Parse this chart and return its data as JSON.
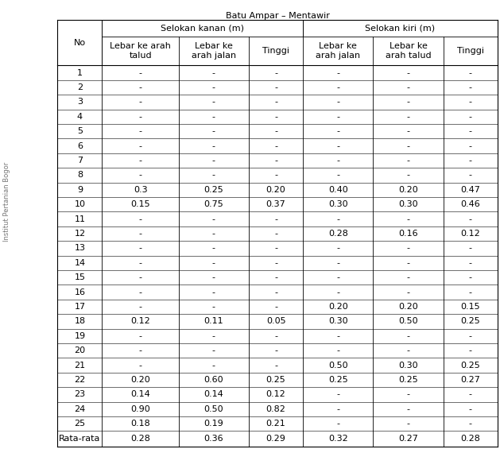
{
  "title": "Batu Ampar – Mentawir",
  "header_row1_left": "Selokan kanan (m)",
  "header_row1_right": "Selokan kiri (m)",
  "col_labels": [
    "No",
    "Lebar ke arah\ntalud",
    "Lebar ke\narah jalan",
    "Tinggi",
    "Lebar ke\narah jalan",
    "Lebar ke\narah talud",
    "Tinggi"
  ],
  "rows": [
    [
      "1",
      "-",
      "-",
      "-",
      "-",
      "-",
      "-"
    ],
    [
      "2",
      "-",
      "-",
      "-",
      "-",
      "-",
      "-"
    ],
    [
      "3",
      "-",
      "-",
      "-",
      "-",
      "-",
      "-"
    ],
    [
      "4",
      "-",
      "-",
      "-",
      "-",
      "-",
      "-"
    ],
    [
      "5",
      "-",
      "-",
      "-",
      "-",
      "-",
      "-"
    ],
    [
      "6",
      "-",
      "-",
      "-",
      "-",
      "-",
      "-"
    ],
    [
      "7",
      "-",
      "-",
      "-",
      "-",
      "-",
      "-"
    ],
    [
      "8",
      "-",
      "-",
      "-",
      "-",
      "-",
      "-"
    ],
    [
      "9",
      "0.3",
      "0.25",
      "0.20",
      "0.40",
      "0.20",
      "0.47"
    ],
    [
      "10",
      "0.15",
      "0.75",
      "0.37",
      "0.30",
      "0.30",
      "0.46"
    ],
    [
      "11",
      "-",
      "-",
      "-",
      "-",
      "-",
      "-"
    ],
    [
      "12",
      "-",
      "-",
      "-",
      "0.28",
      "0.16",
      "0.12"
    ],
    [
      "13",
      "-",
      "-",
      "-",
      "-",
      "-",
      "-"
    ],
    [
      "14",
      "-",
      "-",
      "-",
      "-",
      "-",
      "-"
    ],
    [
      "15",
      "-",
      "-",
      "-",
      "-",
      "-",
      "-"
    ],
    [
      "16",
      "-",
      "-",
      "-",
      "-",
      "-",
      "-"
    ],
    [
      "17",
      "-",
      "-",
      "-",
      "0.20",
      "0.20",
      "0.15"
    ],
    [
      "18",
      "0.12",
      "0.11",
      "0.05",
      "0.30",
      "0.50",
      "0.25"
    ],
    [
      "19",
      "-",
      "-",
      "-",
      "-",
      "-",
      "-"
    ],
    [
      "20",
      "-",
      "-",
      "-",
      "-",
      "-",
      "-"
    ],
    [
      "21",
      "-",
      "-",
      "-",
      "0.50",
      "0.30",
      "0.25"
    ],
    [
      "22",
      "0.20",
      "0.60",
      "0.25",
      "0.25",
      "0.25",
      "0.27"
    ],
    [
      "23",
      "0.14",
      "0.14",
      "0.12",
      "-",
      "-",
      "-"
    ],
    [
      "24",
      "0.90",
      "0.50",
      "0.82",
      "-",
      "-",
      "-"
    ],
    [
      "25",
      "0.18",
      "0.19",
      "0.21",
      "-",
      "-",
      "-"
    ]
  ],
  "footer": [
    "Rata-rata",
    "0.28",
    "0.36",
    "0.29",
    "0.32",
    "0.27",
    "0.28"
  ],
  "col_widths": [
    0.7,
    1.2,
    1.1,
    0.85,
    1.1,
    1.1,
    0.85
  ],
  "bg_color": "#ffffff",
  "font_size": 8.0,
  "watermark_text": "Institut Pertanian Bogor"
}
